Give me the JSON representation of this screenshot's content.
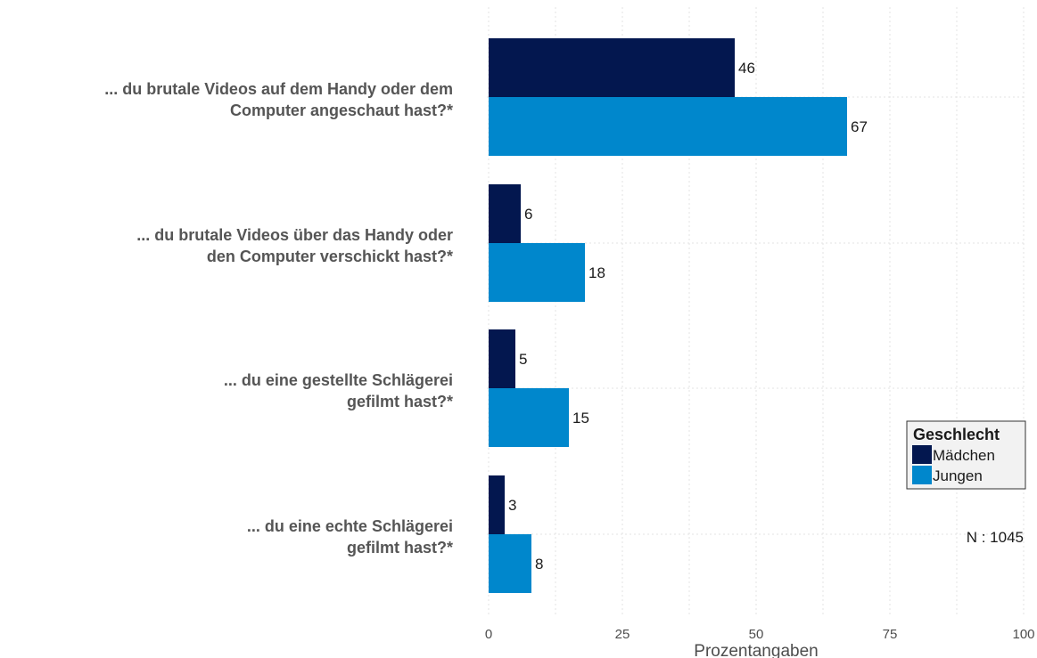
{
  "chart_data": {
    "type": "bar",
    "orientation": "horizontal",
    "categories": [
      [
        "... du brutale Videos auf dem Handy oder dem",
        "Computer angeschaut hast?*"
      ],
      [
        "... du brutale Videos über das Handy oder",
        "den Computer verschickt hast?*"
      ],
      [
        "... du eine gestellte Schlägerei",
        "gefilmt hast?*"
      ],
      [
        "... du eine echte Schlägerei",
        "gefilmt hast?*"
      ]
    ],
    "series": [
      {
        "name": "Mädchen",
        "color": "#03174f",
        "values": [
          46,
          6,
          5,
          3
        ]
      },
      {
        "name": "Jungen",
        "color": "#0087cc",
        "values": [
          67,
          18,
          15,
          8
        ]
      }
    ],
    "xlabel": "Prozentangaben",
    "ylabel": "",
    "xlim": [
      0,
      100
    ],
    "xticks": [
      0,
      25,
      50,
      75,
      100
    ],
    "grid": true,
    "legend": {
      "title": "Geschlecht",
      "position": "right"
    },
    "note": "N : 1045"
  }
}
